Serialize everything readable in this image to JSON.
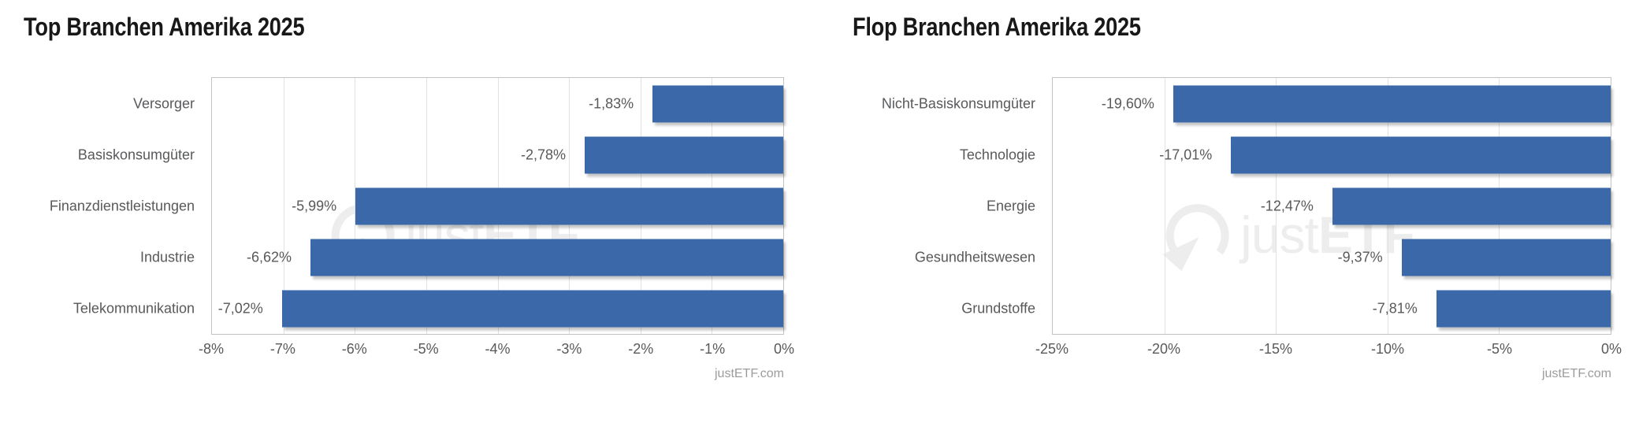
{
  "page": {
    "background": "#ffffff"
  },
  "watermark": {
    "just": "just",
    "etf": "ETF"
  },
  "chart_data": [
    {
      "type": "bar",
      "orientation": "horizontal",
      "title": "Top Branchen Amerika 2025",
      "categories": [
        "Versorger",
        "Basiskonsumgüter",
        "Finanzdienstleistungen",
        "Industrie",
        "Telekommunikation"
      ],
      "values": [
        -1.83,
        -2.78,
        -5.99,
        -6.62,
        -7.02
      ],
      "value_labels": [
        "-1,83%",
        "-2,78%",
        "-5,99%",
        "-6,62%",
        "-7,02%"
      ],
      "xlim": [
        -8,
        0
      ],
      "xticks": [
        "-8%",
        "-7%",
        "-6%",
        "-5%",
        "-4%",
        "-3%",
        "-2%",
        "-1%",
        "0%"
      ],
      "bar_color": "#3a68a9",
      "grid": true,
      "legend": false,
      "attribution": "justETF.com"
    },
    {
      "type": "bar",
      "orientation": "horizontal",
      "title": "Flop Branchen Amerika 2025",
      "categories": [
        "Nicht-Basiskonsumgüter",
        "Technologie",
        "Energie",
        "Gesundheitswesen",
        "Grundstoffe"
      ],
      "values": [
        -19.6,
        -17.01,
        -12.47,
        -9.37,
        -7.81
      ],
      "value_labels": [
        "-19,60%",
        "-17,01%",
        "-12,47%",
        "-9,37%",
        "-7,81%"
      ],
      "xlim": [
        -25,
        0
      ],
      "xticks": [
        "-25%",
        "-20%",
        "-15%",
        "-10%",
        "-5%",
        "0%"
      ],
      "bar_color": "#3a68a9",
      "grid": true,
      "legend": false,
      "attribution": "justETF.com"
    }
  ]
}
